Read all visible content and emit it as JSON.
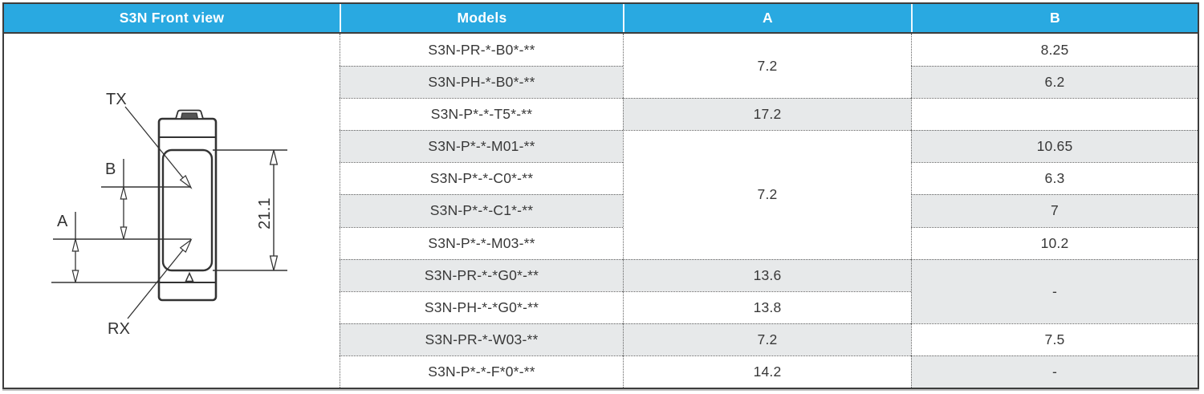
{
  "colors": {
    "header_bg": "#29a9e1",
    "row_shade": "#e7e9ea",
    "border_dark": "#3d3d3d",
    "line_ink": "#333333"
  },
  "header": {
    "front_view": "S3N Front view",
    "models": "Models",
    "col_a": "A",
    "col_b": "B"
  },
  "diagram": {
    "labels": {
      "tx": "TX",
      "rx": "RX",
      "a": "A",
      "b": "B"
    },
    "dimension_height": "21.1"
  },
  "table": {
    "models": [
      {
        "row": 1,
        "label": "S3N-PR-*-B0*-**",
        "shaded": false
      },
      {
        "row": 2,
        "label": "S3N-PH-*-B0*-**",
        "shaded": true
      },
      {
        "row": 3,
        "label": "S3N-P*-*-T5*-**",
        "shaded": false
      },
      {
        "row": 4,
        "label": "S3N-P*-*-M01-**",
        "shaded": true
      },
      {
        "row": 5,
        "label": "S3N-P*-*-C0*-**",
        "shaded": false
      },
      {
        "row": 6,
        "label": "S3N-P*-*-C1*-**",
        "shaded": true
      },
      {
        "row": 7,
        "label": "S3N-P*-*-M03-**",
        "shaded": false
      },
      {
        "row": 8,
        "label": "S3N-PR-*-*G0*-**",
        "shaded": true
      },
      {
        "row": 9,
        "label": "S3N-PH-*-*G0*-**",
        "shaded": false
      },
      {
        "row": 10,
        "label": "S3N-PR-*-W03-**",
        "shaded": true
      },
      {
        "row": 11,
        "label": "S3N-P*-*-F*0*-**",
        "shaded": false
      }
    ],
    "a_cells": [
      {
        "row": 1,
        "span": 2,
        "value": "7.2",
        "shaded": false
      },
      {
        "row": 3,
        "span": 1,
        "value": "17.2",
        "shaded": true
      },
      {
        "row": 4,
        "span": 4,
        "value": "7.2",
        "shaded": false
      },
      {
        "row": 8,
        "span": 1,
        "value": "13.6",
        "shaded": true
      },
      {
        "row": 9,
        "span": 1,
        "value": "13.8",
        "shaded": false
      },
      {
        "row": 10,
        "span": 1,
        "value": "7.2",
        "shaded": true
      },
      {
        "row": 11,
        "span": 1,
        "value": "14.2",
        "shaded": false
      }
    ],
    "b_cells": [
      {
        "row": 1,
        "span": 1,
        "value": "8.25",
        "shaded": false
      },
      {
        "row": 2,
        "span": 1,
        "value": "6.2",
        "shaded": true
      },
      {
        "row": 3,
        "span": 1,
        "value": "",
        "shaded": false
      },
      {
        "row": 4,
        "span": 1,
        "value": "10.65",
        "shaded": true
      },
      {
        "row": 5,
        "span": 1,
        "value": "6.3",
        "shaded": false
      },
      {
        "row": 6,
        "span": 1,
        "value": "7",
        "shaded": true
      },
      {
        "row": 7,
        "span": 1,
        "value": "10.2",
        "shaded": false
      },
      {
        "row": 8,
        "span": 2,
        "value": "-",
        "shaded": true
      },
      {
        "row": 10,
        "span": 1,
        "value": "7.5",
        "shaded": false
      },
      {
        "row": 11,
        "span": 1,
        "value": "-",
        "shaded": true
      }
    ]
  }
}
